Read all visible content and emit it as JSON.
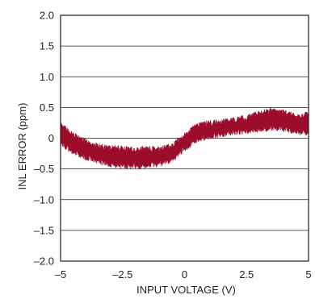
{
  "chart_data": {
    "type": "line",
    "xlabel": "INPUT VOLTAGE (V)",
    "ylabel": "INL ERROR (ppm)",
    "xlim": [
      -5,
      5
    ],
    "ylim": [
      -2.0,
      2.0
    ],
    "x_ticks": [
      -5,
      -2.5,
      0,
      2.5,
      5
    ],
    "x_tick_labels": [
      "–5",
      "–2.5",
      "0",
      "2.5",
      "5"
    ],
    "y_ticks": [
      2.0,
      1.5,
      1.0,
      0.5,
      0,
      -0.5,
      -1.0,
      -1.5,
      -2.0
    ],
    "y_tick_labels": [
      "2.0",
      "1.5",
      "1.0",
      "0.5",
      "0",
      "–0.5",
      "–1.0",
      "–1.5",
      "–2.0"
    ],
    "grid": true,
    "series": [
      {
        "color": "#9b0d2b",
        "x": [
          -5.0,
          -4.5,
          -4.0,
          -3.5,
          -3.0,
          -2.5,
          -2.0,
          -1.5,
          -1.0,
          -0.5,
          0.0,
          0.5,
          1.0,
          1.5,
          2.0,
          2.5,
          3.0,
          3.5,
          4.0,
          4.5,
          5.0
        ],
        "y_upper": [
          0.22,
          0.05,
          -0.05,
          -0.12,
          -0.15,
          -0.17,
          -0.18,
          -0.18,
          -0.17,
          -0.12,
          0.05,
          0.2,
          0.25,
          0.27,
          0.3,
          0.33,
          0.4,
          0.45,
          0.42,
          0.35,
          0.38
        ],
        "y_lower": [
          -0.1,
          -0.22,
          -0.3,
          -0.38,
          -0.42,
          -0.45,
          -0.45,
          -0.44,
          -0.42,
          -0.35,
          -0.18,
          -0.02,
          0.03,
          0.07,
          0.1,
          0.12,
          0.15,
          0.18,
          0.15,
          0.1,
          0.1
        ]
      }
    ]
  }
}
